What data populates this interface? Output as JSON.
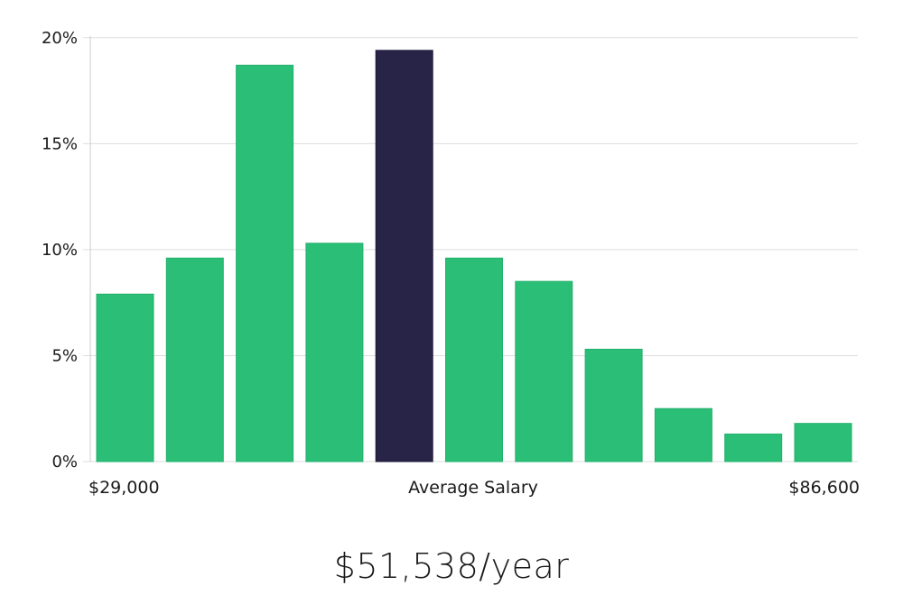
{
  "chart_data": {
    "type": "bar",
    "title": "",
    "xlabel": "Average Salary",
    "ylabel": "",
    "x_min_label": "$29,000",
    "x_max_label": "$86,600",
    "y_tick_labels": [
      "0%",
      "5%",
      "10%",
      "15%",
      "20%"
    ],
    "y_ticks": [
      0,
      5,
      10,
      15,
      20
    ],
    "ylim": [
      0,
      20.5
    ],
    "grid": true,
    "values": [
      7.9,
      9.6,
      18.7,
      10.3,
      19.4,
      9.6,
      8.5,
      5.3,
      2.5,
      1.3,
      1.8
    ],
    "highlight_index": 4,
    "colors": {
      "bar": "#2ABE76",
      "highlight": "#282448",
      "grid": "#dddddd",
      "axis": "#cccccc"
    }
  },
  "summary": {
    "salary_text": "$51,538/year"
  }
}
